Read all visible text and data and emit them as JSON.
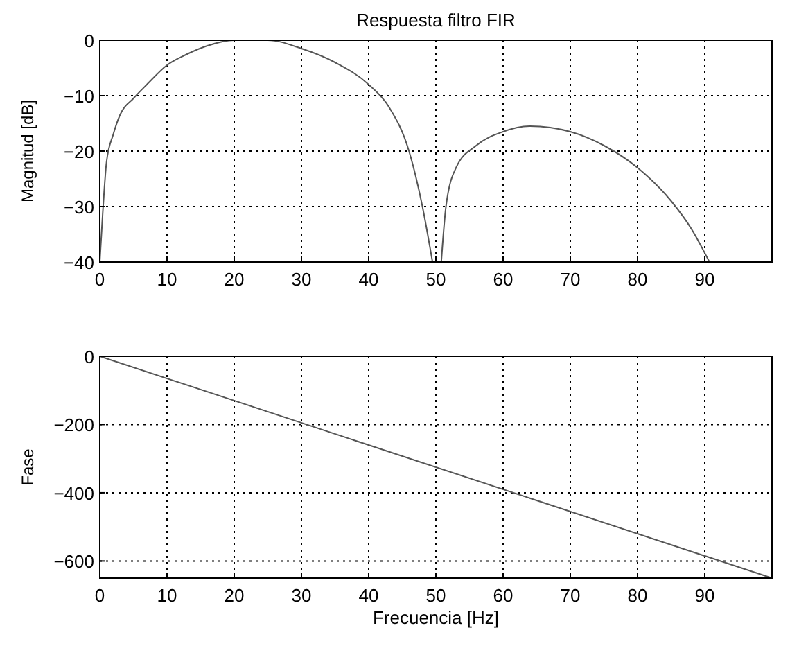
{
  "chart_data": [
    {
      "type": "line",
      "title": "Respuesta filtro FIR",
      "ylabel": "Magnitud [dB]",
      "xlim": [
        0,
        100
      ],
      "xticks": [
        0,
        10,
        20,
        30,
        40,
        50,
        60,
        70,
        80,
        90
      ],
      "ylim": [
        -40,
        0
      ],
      "yticks": [
        0,
        -10,
        -20,
        -30,
        -40
      ],
      "grid": true,
      "series": [
        {
          "color": "#555555",
          "x": [
            0,
            0.5,
            1,
            2,
            3,
            5,
            7,
            10,
            13,
            16,
            20,
            25,
            30,
            35,
            40,
            43,
            46,
            48,
            49.5
          ],
          "values": [
            -40,
            -30,
            -22,
            -17,
            -13.5,
            -10.5,
            -8,
            -4.5,
            -2.5,
            -1,
            0,
            0,
            -1.5,
            -4,
            -8,
            -12,
            -20,
            -30,
            -40
          ]
        },
        {
          "color": "#555555",
          "x": [
            50.8,
            51.5,
            53,
            56,
            60,
            64,
            70,
            75,
            80,
            85,
            88,
            90.7
          ],
          "values": [
            -40,
            -30,
            -23,
            -19,
            -16.5,
            -15.5,
            -16.5,
            -19,
            -23,
            -29,
            -34,
            -40
          ]
        }
      ]
    },
    {
      "type": "line",
      "ylabel": "Fase",
      "xlabel": "Frecuencia [Hz]",
      "xlim": [
        0,
        100
      ],
      "xticks": [
        0,
        10,
        20,
        30,
        40,
        50,
        60,
        70,
        80,
        90
      ],
      "ylim": [
        -650,
        0
      ],
      "yticks": [
        0,
        -200,
        -400,
        -600
      ],
      "grid": true,
      "series": [
        {
          "color": "#555555",
          "x": [
            0,
            100
          ],
          "values": [
            0,
            -650
          ]
        }
      ]
    }
  ]
}
